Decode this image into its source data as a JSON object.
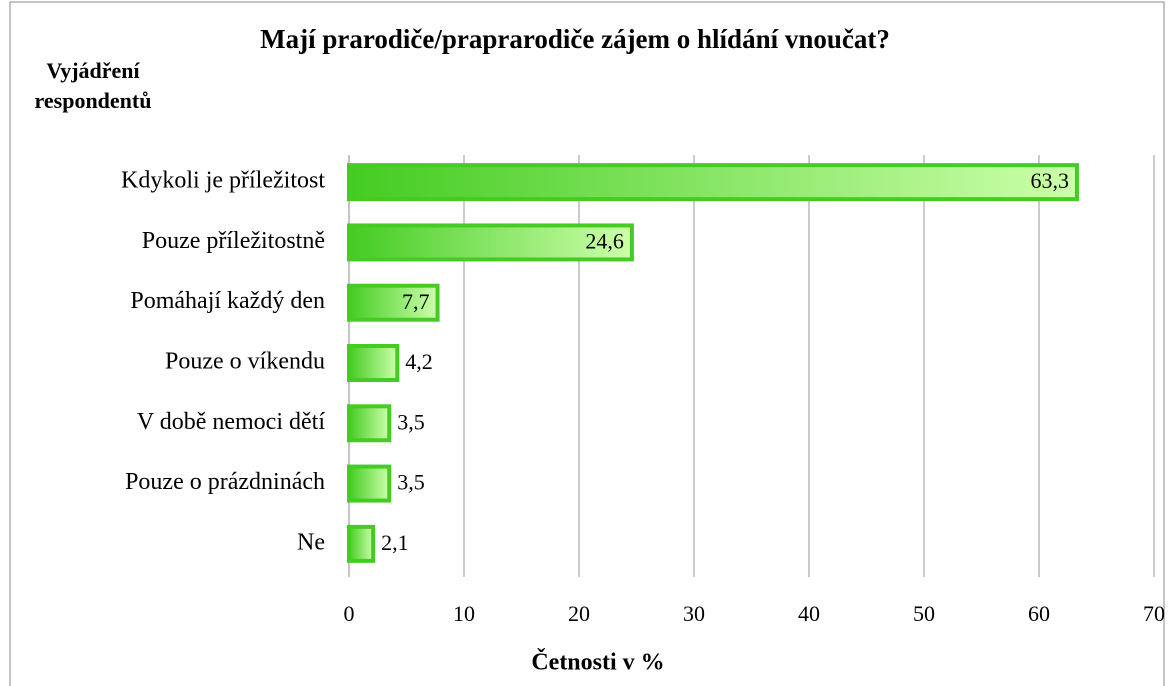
{
  "chart_data": {
    "type": "bar",
    "orientation": "horizontal",
    "title": "Mají prarodiče/praprarodiče zájem o hlídání vnoučat?",
    "y_label": "Vyjádření respondentů",
    "x_label": "Četnosti v %",
    "categories": [
      "Kdykoli je příležitost",
      "Pouze příležitostně",
      "Pomáhají každý den",
      "Pouze o víkendu",
      "V době nemoci dětí",
      "Pouze o prázdninách",
      "Ne"
    ],
    "values": [
      63.3,
      24.6,
      7.7,
      4.2,
      3.5,
      3.5,
      2.1
    ],
    "value_labels": [
      "63,3",
      "24,6",
      "7,7",
      "4,2",
      "3,5",
      "3,5",
      "2,1"
    ],
    "color": "#44cc22",
    "xlim": [
      0,
      70
    ],
    "xticks": [
      0,
      10,
      20,
      30,
      40,
      50,
      60,
      70
    ],
    "grid": true
  }
}
